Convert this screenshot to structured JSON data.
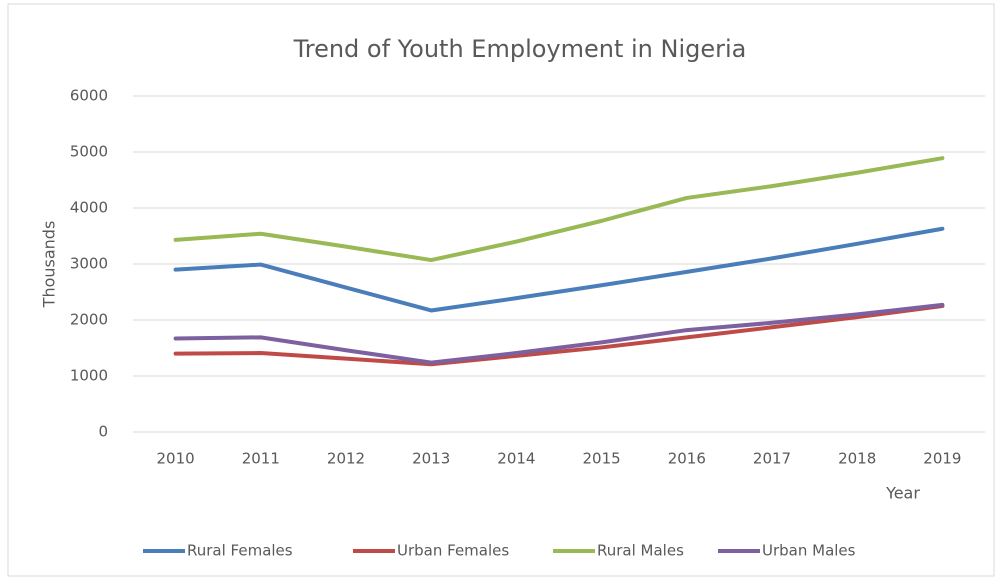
{
  "chart_data": {
    "type": "line",
    "title": "Trend of Youth Employment in Nigeria",
    "x_label": "Year",
    "y_label": "Thousands",
    "categories": [
      "2010",
      "2011",
      "2012",
      "2013",
      "2014",
      "2015",
      "2016",
      "2017",
      "2018",
      "2019"
    ],
    "series": [
      {
        "name": "Rural Females",
        "color": "#4a7ebb",
        "values": [
          2900,
          2990,
          2580,
          2170,
          2390,
          2620,
          2860,
          3100,
          3360,
          3630
        ]
      },
      {
        "name": "Urban Females",
        "color": "#be4b48",
        "values": [
          1400,
          1410,
          1310,
          1210,
          1360,
          1510,
          1690,
          1870,
          2050,
          2250
        ]
      },
      {
        "name": "Rural Males",
        "color": "#98b954",
        "values": [
          3430,
          3540,
          3310,
          3070,
          3400,
          3770,
          4180,
          4390,
          4630,
          4890
        ]
      },
      {
        "name": "Urban Males",
        "color": "#7d60a0",
        "values": [
          1670,
          1690,
          1460,
          1240,
          1410,
          1600,
          1820,
          1950,
          2100,
          2270
        ]
      }
    ],
    "ylim": [
      0,
      6000
    ],
    "yticks": [
      0,
      1000,
      2000,
      3000,
      4000,
      5000,
      6000
    ],
    "grid": true,
    "legend": "bottom"
  }
}
